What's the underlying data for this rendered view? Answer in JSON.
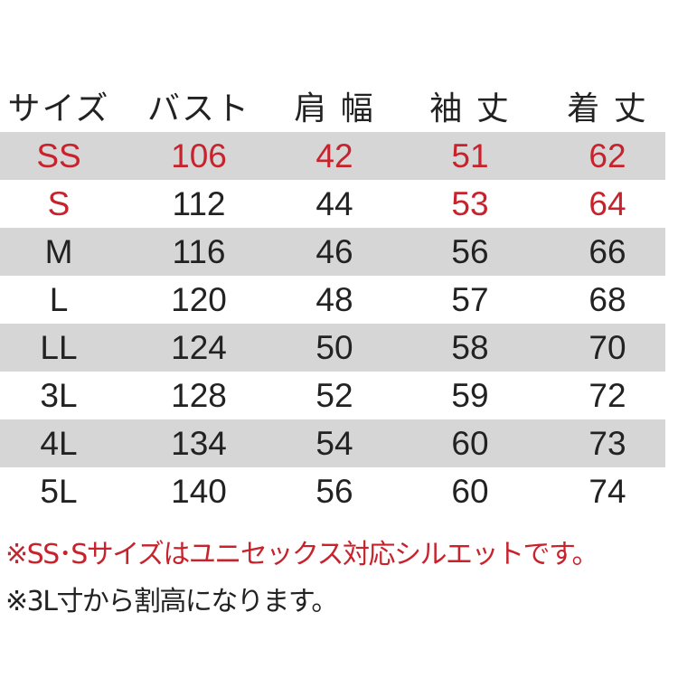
{
  "colors": {
    "accent_red": "#c8232c",
    "row_shade": "#d6d6d6",
    "text": "#222222"
  },
  "headers": [
    "サイズ",
    "バスト",
    "肩 幅",
    "袖 丈",
    "着 丈"
  ],
  "rows": [
    {
      "cells": [
        "SS",
        "106",
        "42",
        "51",
        "62"
      ],
      "red": [
        true,
        true,
        true,
        true,
        true
      ],
      "shaded": true
    },
    {
      "cells": [
        "S",
        "112",
        "44",
        "53",
        "64"
      ],
      "red": [
        true,
        false,
        false,
        true,
        true
      ],
      "shaded": false
    },
    {
      "cells": [
        "M",
        "116",
        "46",
        "56",
        "66"
      ],
      "red": [
        false,
        false,
        false,
        false,
        false
      ],
      "shaded": true
    },
    {
      "cells": [
        "L",
        "120",
        "48",
        "57",
        "68"
      ],
      "red": [
        false,
        false,
        false,
        false,
        false
      ],
      "shaded": false
    },
    {
      "cells": [
        "LL",
        "124",
        "50",
        "58",
        "70"
      ],
      "red": [
        false,
        false,
        false,
        false,
        false
      ],
      "shaded": true
    },
    {
      "cells": [
        "3L",
        "128",
        "52",
        "59",
        "72"
      ],
      "red": [
        false,
        false,
        false,
        false,
        false
      ],
      "shaded": false
    },
    {
      "cells": [
        "4L",
        "134",
        "54",
        "60",
        "73"
      ],
      "red": [
        false,
        false,
        false,
        false,
        false
      ],
      "shaded": true
    },
    {
      "cells": [
        "5L",
        "140",
        "56",
        "60",
        "74"
      ],
      "red": [
        false,
        false,
        false,
        false,
        false
      ],
      "shaded": false
    }
  ],
  "notes": [
    {
      "text": "※SS･Sサイズはユニセックス対応シルエットです。",
      "red": true
    },
    {
      "text": "※3L寸から割高になります。",
      "red": false
    }
  ]
}
